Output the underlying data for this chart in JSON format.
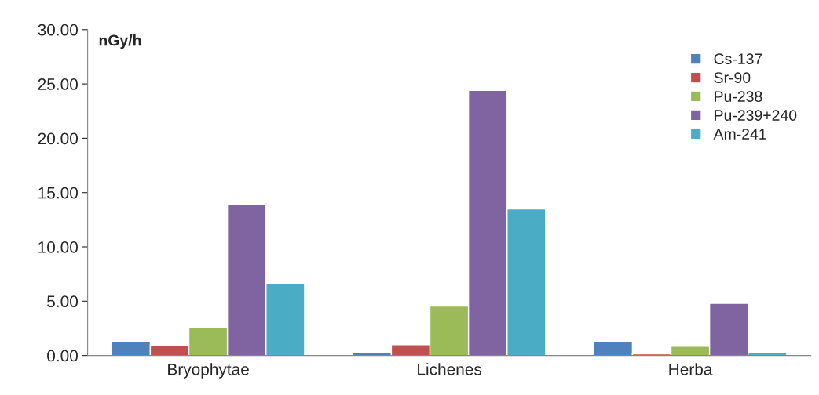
{
  "chart_data": {
    "type": "bar",
    "ylabel": "nGy/h",
    "categories": [
      "Bryophytae",
      "Lichenes",
      "Herba"
    ],
    "series": [
      {
        "name": "Cs-137",
        "color": "#4f81bd",
        "values": [
          1.25,
          0.3,
          1.3
        ]
      },
      {
        "name": "Sr-90",
        "color": "#c0504d",
        "values": [
          0.95,
          1.0,
          0.15
        ]
      },
      {
        "name": "Pu-238",
        "color": "#9bbb59",
        "values": [
          2.55,
          4.55,
          0.85
        ]
      },
      {
        "name": "Pu-239+240",
        "color": "#8064a2",
        "values": [
          13.9,
          24.4,
          4.8
        ]
      },
      {
        "name": "Am-241",
        "color": "#4bacc6",
        "values": [
          6.6,
          13.5,
          0.3
        ]
      }
    ],
    "ylim": [
      0,
      30
    ],
    "yticks": [
      {
        "value": 0,
        "label": "0.00"
      },
      {
        "value": 5,
        "label": "5.00"
      },
      {
        "value": 10,
        "label": "10.00"
      },
      {
        "value": 15,
        "label": "15.00"
      },
      {
        "value": 20,
        "label": "20.00"
      },
      {
        "value": 25,
        "label": "25.00"
      },
      {
        "value": 30,
        "label": "30.00"
      }
    ],
    "grid": false,
    "legend": "top right"
  }
}
